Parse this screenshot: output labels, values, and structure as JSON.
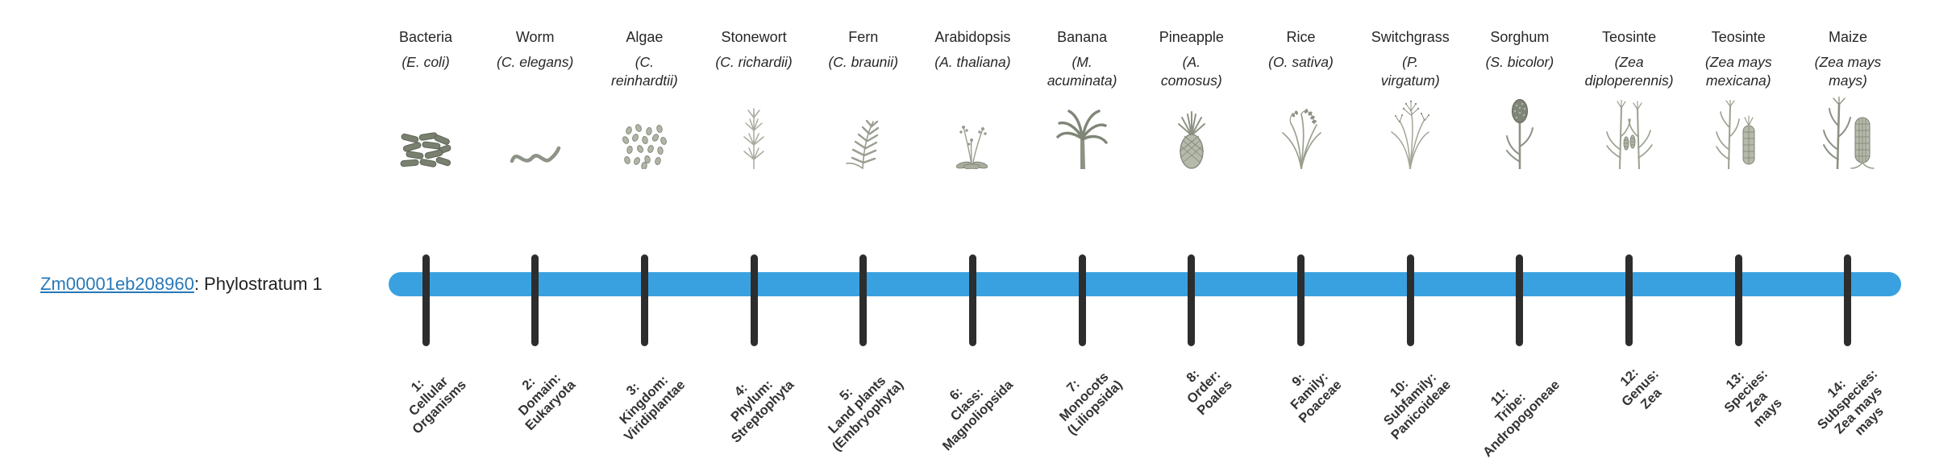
{
  "gene": {
    "id": "Zm00001eb208960",
    "suffix": ": Phylostratum 1",
    "link_color": "#2878b8"
  },
  "timeline": {
    "bar_color": "#3aa1e0",
    "tick_color": "#2d2d2d"
  },
  "strata": [
    {
      "name": "Bacteria",
      "sci": "(E. coli)",
      "icon": "bacteria-icon",
      "tick_label": "1:\nCellular\nOrganisms"
    },
    {
      "name": "Worm",
      "sci": "(C. elegans)",
      "icon": "worm-icon",
      "tick_label": "2:\nDomain:\nEukaryota"
    },
    {
      "name": "Algae",
      "sci": "(C.\nreinhardtii)",
      "icon": "algae-icon",
      "tick_label": "3:\nKingdom:\nViridiplantae"
    },
    {
      "name": "Stonewort",
      "sci": "(C. richardii)",
      "icon": "stonewort-icon",
      "tick_label": "4:\nPhylum:\nStreptophyta"
    },
    {
      "name": "Fern",
      "sci": "(C. braunii)",
      "icon": "fern-icon",
      "tick_label": "5:\nLand plants\n(Embryophyta)"
    },
    {
      "name": "Arabidopsis",
      "sci": "(A. thaliana)",
      "icon": "arabidopsis-icon",
      "tick_label": "6:\nClass:\nMagnoliopsida"
    },
    {
      "name": "Banana",
      "sci": "(M.\nacuminata)",
      "icon": "banana-icon",
      "tick_label": "7:\nMonocots\n(Liliopsida)"
    },
    {
      "name": "Pineapple",
      "sci": "(A.\ncomosus)",
      "icon": "pineapple-icon",
      "tick_label": "8:\nOrder:\nPoales"
    },
    {
      "name": "Rice",
      "sci": "(O. sativa)",
      "icon": "rice-icon",
      "tick_label": "9:\nFamily:\nPoaceae"
    },
    {
      "name": "Switchgrass",
      "sci": "(P.\nvirgatum)",
      "icon": "switchgrass-icon",
      "tick_label": "10:\nSubfamily:\nPanicoideae"
    },
    {
      "name": "Sorghum",
      "sci": "(S. bicolor)",
      "icon": "sorghum-icon",
      "tick_label": "11:\nTribe:\nAndropogoneae"
    },
    {
      "name": "Teosinte",
      "sci": "(Zea\ndiploperennis)",
      "icon": "teosinte-icon",
      "tick_label": "12:\nGenus:\nZea"
    },
    {
      "name": "Teosinte",
      "sci": "(Zea mays\nmexicana)",
      "icon": "teosinte-mexicana-icon",
      "tick_label": "13:\nSpecies:\nZea\nmays"
    },
    {
      "name": "Maize",
      "sci": "(Zea mays\nmays)",
      "icon": "maize-icon",
      "tick_label": "14:\nSubspecies:\nZea mays\nmays"
    }
  ]
}
